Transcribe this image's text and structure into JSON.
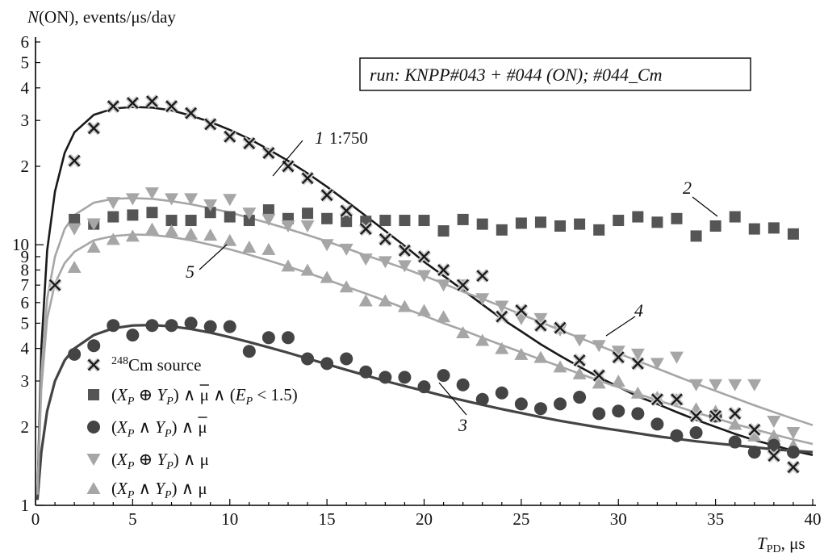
{
  "chart_data": {
    "type": "scatter",
    "title": "",
    "ylabel_main": "(ON), events/μs/day",
    "ylabel_italic": "N",
    "xlabel_italic": "T",
    "xlabel_sub": "PD",
    "xlabel_unit": ", μs",
    "xlim": [
      0,
      40
    ],
    "ylim": [
      1,
      60
    ],
    "y_scale": "log",
    "grid": false,
    "x_ticks": [
      0,
      5,
      10,
      15,
      20,
      25,
      30,
      35,
      40
    ],
    "x_tick_labels": [
      "0",
      "5",
      "10",
      "15",
      "20",
      "25",
      "30",
      "35",
      "40"
    ],
    "y_major_ticks": [
      1,
      10
    ],
    "y_major_labels": [
      "1",
      "10"
    ],
    "y_minor_ticks": [
      2,
      3,
      4,
      5,
      6,
      7,
      8,
      9,
      20,
      30,
      40,
      50,
      60
    ],
    "y_minor_labels": [
      "2",
      "3",
      "4",
      "5",
      "6",
      "7",
      "8",
      "9",
      "2",
      "3",
      "4",
      "5",
      "6"
    ],
    "run_label": "run: KNPP#043 + #044 (ON); #044_Cm",
    "ratio_label": "1:750",
    "curve_labels": [
      {
        "text": "1",
        "series": "cm"
      },
      {
        "text": "2",
        "series": "sq"
      },
      {
        "text": "3",
        "series": "circ"
      },
      {
        "text": "4",
        "series": "tri_down"
      },
      {
        "text": "5",
        "series": "tri_up"
      }
    ],
    "legend": {
      "placement": "bottom-left",
      "entries": [
        {
          "key": "cm",
          "marker": "x",
          "sup": "248",
          "text": "Cm source"
        },
        {
          "key": "sq",
          "marker": "square",
          "t1": "(",
          "X": "X",
          "sub1": "P",
          "op": " ⊕ ",
          "Y": "Y",
          "sub2": "P",
          "t2": ") ∧ ",
          "mu": "μ",
          "bar": true,
          "t3": " ∧ (",
          "E": "E",
          "sub3": "P",
          "t4": " < 1.5)"
        },
        {
          "key": "circ",
          "marker": "circle",
          "t1": "(",
          "X": "X",
          "sub1": "P",
          "op": " ∧ ",
          "Y": "Y",
          "sub2": "P",
          "t2": ") ∧ ",
          "mu": "μ",
          "bar": true
        },
        {
          "key": "tri_down",
          "marker": "triangle-down",
          "t1": "(",
          "X": "X",
          "sub1": "P",
          "op": " ⊕ ",
          "Y": "Y",
          "sub2": "P",
          "t2": ") ∧ ",
          "mu": "μ",
          "bar": false
        },
        {
          "key": "tri_up",
          "marker": "triangle-up",
          "t1": "(",
          "X": "X",
          "sub1": "P",
          "op": " ∧ ",
          "Y": "Y",
          "sub2": "P",
          "t2": ") ∧ ",
          "mu": "μ",
          "bar": false
        }
      ]
    },
    "series": [
      {
        "key": "cm",
        "marker": "x",
        "color": "#1a1a1a",
        "x": [
          1,
          2,
          3,
          4,
          5,
          6,
          7,
          8,
          9,
          10,
          11,
          12,
          13,
          14,
          15,
          16,
          17,
          18,
          19,
          20,
          21,
          22,
          23,
          24,
          25,
          26,
          27,
          28,
          29,
          30,
          31,
          32,
          33,
          34,
          35,
          36,
          37,
          38,
          39
        ],
        "y": [
          7,
          21,
          28,
          34,
          35,
          35.5,
          34,
          32,
          29,
          26,
          24.5,
          22.5,
          20,
          18,
          15.5,
          13.5,
          11.5,
          10.5,
          9.5,
          9,
          8,
          7,
          7.6,
          5.3,
          5.6,
          4.9,
          4.8,
          3.6,
          3.15,
          3.7,
          3.5,
          2.55,
          2.55,
          2.2,
          2.2,
          2.25,
          1.95,
          1.55,
          1.4
        ],
        "fit": [
          [
            0.1,
            1.1
          ],
          [
            0.3,
            4
          ],
          [
            0.6,
            9.5
          ],
          [
            1,
            16
          ],
          [
            1.5,
            22.5
          ],
          [
            2,
            27
          ],
          [
            3,
            31.5
          ],
          [
            4,
            33.3
          ],
          [
            5,
            33.8
          ],
          [
            6,
            33.6
          ],
          [
            7,
            32.8
          ],
          [
            8,
            31.3
          ],
          [
            9,
            29.6
          ],
          [
            10,
            27.6
          ],
          [
            11,
            25.5
          ],
          [
            12,
            23.2
          ],
          [
            13,
            21
          ],
          [
            14,
            18.8
          ],
          [
            15,
            16.7
          ],
          [
            16,
            14.7
          ],
          [
            17,
            12.9
          ],
          [
            18,
            11.3
          ],
          [
            19,
            9.9
          ],
          [
            20,
            8.6
          ],
          [
            21,
            7.6
          ],
          [
            22,
            6.7
          ],
          [
            23,
            5.9
          ],
          [
            24,
            5.2
          ],
          [
            25,
            4.65
          ],
          [
            26,
            4.15
          ],
          [
            27,
            3.75
          ],
          [
            28,
            3.4
          ],
          [
            29,
            3.1
          ],
          [
            30,
            2.85
          ],
          [
            31,
            2.62
          ],
          [
            32,
            2.45
          ],
          [
            33,
            2.28
          ],
          [
            34,
            2.13
          ],
          [
            35,
            2
          ],
          [
            36,
            1.88
          ],
          [
            37,
            1.78
          ],
          [
            38,
            1.7
          ],
          [
            39,
            1.62
          ],
          [
            40,
            1.56
          ]
        ]
      },
      {
        "key": "sq",
        "marker": "square",
        "color": "#555555",
        "x": [
          2,
          3,
          4,
          5,
          6,
          7,
          8,
          9,
          10,
          11,
          12,
          13,
          14,
          15,
          16,
          17,
          18,
          19,
          20,
          21,
          22,
          23,
          24,
          25,
          26,
          27,
          28,
          29,
          30,
          31,
          32,
          33,
          34,
          35,
          36,
          37,
          38,
          39
        ],
        "y": [
          12.5,
          12,
          12.8,
          13,
          13.3,
          12.4,
          12.4,
          13.3,
          12.8,
          12.4,
          13.6,
          12.6,
          13.2,
          12.6,
          12.3,
          12.3,
          12.4,
          12.4,
          12.4,
          11.3,
          12.5,
          12,
          11.4,
          12.1,
          12.2,
          11.8,
          12,
          11.4,
          12.4,
          12.8,
          12.2,
          12.6,
          10.8,
          11.8,
          12.8,
          11.5,
          11.6,
          11
        ]
      },
      {
        "key": "circ",
        "marker": "circle",
        "color": "#444444",
        "x": [
          2,
          3,
          4,
          5,
          6,
          7,
          8,
          9,
          10,
          11,
          12,
          13,
          14,
          15,
          16,
          17,
          18,
          19,
          20,
          21,
          22,
          23,
          24,
          25,
          26,
          27,
          28,
          29,
          30,
          31,
          32,
          33,
          34,
          35,
          36,
          37,
          38,
          39
        ],
        "y": [
          3.8,
          4.1,
          4.9,
          4.5,
          4.9,
          4.9,
          5,
          4.85,
          4.85,
          3.9,
          4.4,
          4.4,
          3.65,
          3.5,
          3.65,
          3.25,
          3.1,
          3.1,
          2.85,
          3.15,
          2.9,
          2.55,
          2.7,
          2.45,
          2.35,
          2.45,
          2.6,
          2.25,
          2.3,
          2.25,
          2.05,
          1.85,
          1.9,
          2.2,
          1.75,
          1.6,
          1.7,
          1.6
        ],
        "fit": [
          [
            0.1,
            1.05
          ],
          [
            0.3,
            1.6
          ],
          [
            0.6,
            2.3
          ],
          [
            1,
            3
          ],
          [
            1.5,
            3.6
          ],
          [
            2,
            4
          ],
          [
            3,
            4.5
          ],
          [
            4,
            4.78
          ],
          [
            5,
            4.9
          ],
          [
            6,
            4.92
          ],
          [
            7,
            4.86
          ],
          [
            8,
            4.75
          ],
          [
            9,
            4.6
          ],
          [
            10,
            4.42
          ],
          [
            11,
            4.23
          ],
          [
            12,
            4.04
          ],
          [
            13,
            3.85
          ],
          [
            14,
            3.66
          ],
          [
            15,
            3.48
          ],
          [
            16,
            3.31
          ],
          [
            17,
            3.15
          ],
          [
            18,
            3
          ],
          [
            19,
            2.87
          ],
          [
            20,
            2.75
          ],
          [
            21,
            2.63
          ],
          [
            22,
            2.53
          ],
          [
            23,
            2.43
          ],
          [
            24,
            2.34
          ],
          [
            25,
            2.26
          ],
          [
            26,
            2.18
          ],
          [
            27,
            2.11
          ],
          [
            28,
            2.05
          ],
          [
            29,
            1.99
          ],
          [
            30,
            1.94
          ],
          [
            31,
            1.89
          ],
          [
            32,
            1.84
          ],
          [
            33,
            1.8
          ],
          [
            34,
            1.76
          ],
          [
            35,
            1.73
          ],
          [
            36,
            1.7
          ],
          [
            37,
            1.67
          ],
          [
            38,
            1.64
          ],
          [
            39,
            1.62
          ],
          [
            40,
            1.6
          ]
        ]
      },
      {
        "key": "tri_down",
        "marker": "triangle-down",
        "color": "#a6a6a6",
        "x": [
          2,
          3,
          4,
          5,
          6,
          7,
          8,
          9,
          10,
          11,
          12,
          13,
          14,
          15,
          16,
          17,
          18,
          19,
          20,
          21,
          22,
          23,
          24,
          25,
          26,
          27,
          28,
          29,
          30,
          31,
          32,
          33,
          34,
          35,
          36,
          37,
          38,
          39
        ],
        "y": [
          11.5,
          12,
          14.5,
          15,
          15.8,
          15,
          15,
          14.2,
          14.9,
          13.2,
          12.5,
          11.8,
          11.8,
          10,
          9.6,
          8.8,
          8.6,
          8.3,
          7.6,
          7,
          7,
          6.2,
          5.8,
          5.2,
          5.2,
          4.7,
          4.3,
          4.1,
          3.9,
          3.8,
          3.5,
          3.7,
          2.9,
          2.9,
          2.9,
          2.9,
          2.1,
          1.9
        ],
        "fit": [
          [
            0.1,
            1.1
          ],
          [
            0.3,
            3.2
          ],
          [
            0.6,
            6.2
          ],
          [
            1,
            9
          ],
          [
            1.5,
            11.5
          ],
          [
            2,
            13
          ],
          [
            3,
            14.5
          ],
          [
            4,
            15
          ],
          [
            5,
            15.1
          ],
          [
            6,
            15
          ],
          [
            7,
            14.7
          ],
          [
            8,
            14.3
          ],
          [
            9,
            13.8
          ],
          [
            10,
            13.3
          ],
          [
            11,
            12.7
          ],
          [
            12,
            12.1
          ],
          [
            13,
            11.5
          ],
          [
            14,
            10.9
          ],
          [
            15,
            10.3
          ],
          [
            16,
            9.7
          ],
          [
            17,
            9.1
          ],
          [
            18,
            8.6
          ],
          [
            19,
            8.1
          ],
          [
            20,
            7.6
          ],
          [
            21,
            7.1
          ],
          [
            22,
            6.6
          ],
          [
            23,
            6.2
          ],
          [
            24,
            5.8
          ],
          [
            25,
            5.4
          ],
          [
            26,
            5.05
          ],
          [
            27,
            4.7
          ],
          [
            28,
            4.4
          ],
          [
            29,
            4.1
          ],
          [
            30,
            3.83
          ],
          [
            31,
            3.58
          ],
          [
            32,
            3.35
          ],
          [
            33,
            3.13
          ],
          [
            34,
            2.93
          ],
          [
            35,
            2.75
          ],
          [
            36,
            2.58
          ],
          [
            37,
            2.42
          ],
          [
            38,
            2.28
          ],
          [
            39,
            2.15
          ],
          [
            40,
            2.03
          ]
        ]
      },
      {
        "key": "tri_up",
        "marker": "triangle-up",
        "color": "#a6a6a6",
        "x": [
          2,
          3,
          4,
          5,
          6,
          7,
          8,
          9,
          10,
          11,
          12,
          13,
          14,
          15,
          16,
          17,
          18,
          19,
          20,
          21,
          22,
          23,
          24,
          25,
          26,
          27,
          28,
          29,
          30,
          31,
          32,
          33,
          34,
          35,
          36,
          37,
          38,
          39
        ],
        "y": [
          8.2,
          9.8,
          10.5,
          10.8,
          11.5,
          11.3,
          11,
          10.9,
          10.4,
          9.8,
          9.6,
          8.3,
          8,
          7.5,
          6.9,
          6.1,
          6.1,
          5.8,
          5.6,
          5.3,
          4.6,
          4.3,
          4,
          3.8,
          3.7,
          3.4,
          3.2,
          2.95,
          3,
          2.7,
          2.6,
          2.55,
          2.35,
          2.3,
          2.05,
          1.85,
          1.85,
          1.7
        ],
        "fit": [
          [
            0.1,
            1.1
          ],
          [
            0.3,
            2.8
          ],
          [
            0.6,
            5.2
          ],
          [
            1,
            7.1
          ],
          [
            1.5,
            8.5
          ],
          [
            2,
            9.4
          ],
          [
            3,
            10.4
          ],
          [
            4,
            10.8
          ],
          [
            5,
            10.95
          ],
          [
            6,
            10.9
          ],
          [
            7,
            10.7
          ],
          [
            8,
            10.4
          ],
          [
            9,
            10
          ],
          [
            10,
            9.6
          ],
          [
            11,
            9.15
          ],
          [
            12,
            8.7
          ],
          [
            13,
            8.25
          ],
          [
            14,
            7.8
          ],
          [
            15,
            7.35
          ],
          [
            16,
            6.9
          ],
          [
            17,
            6.5
          ],
          [
            18,
            6.1
          ],
          [
            19,
            5.7
          ],
          [
            20,
            5.35
          ],
          [
            21,
            5
          ],
          [
            22,
            4.7
          ],
          [
            23,
            4.4
          ],
          [
            24,
            4.12
          ],
          [
            25,
            3.87
          ],
          [
            26,
            3.63
          ],
          [
            27,
            3.41
          ],
          [
            28,
            3.2
          ],
          [
            29,
            3.01
          ],
          [
            30,
            2.84
          ],
          [
            31,
            2.68
          ],
          [
            32,
            2.53
          ],
          [
            33,
            2.4
          ],
          [
            34,
            2.27
          ],
          [
            35,
            2.16
          ],
          [
            36,
            2.05
          ],
          [
            37,
            1.96
          ],
          [
            38,
            1.87
          ],
          [
            39,
            1.79
          ],
          [
            40,
            1.72
          ]
        ]
      }
    ]
  }
}
